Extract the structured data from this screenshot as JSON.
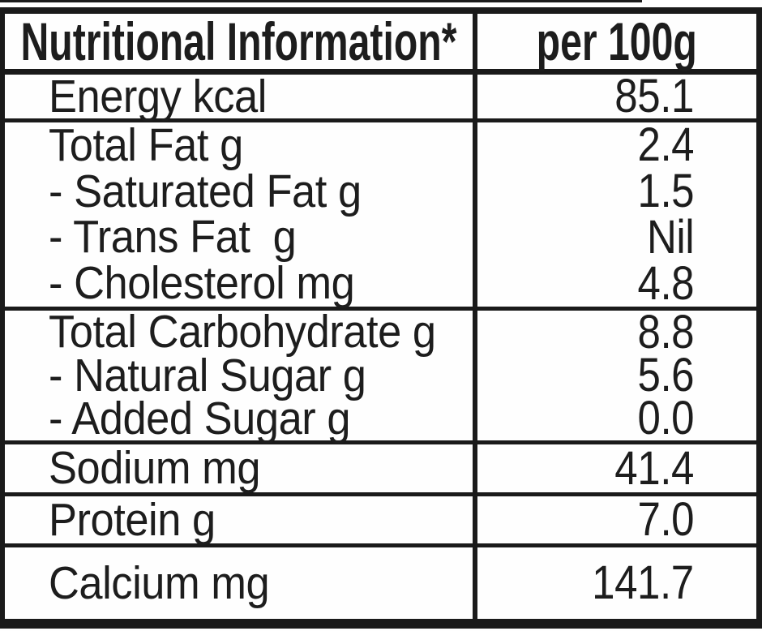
{
  "table": {
    "title": "Nutritional Information*",
    "column_header": "per 100g",
    "colors": {
      "text": "#1d1d1d",
      "border": "#1a1a1a",
      "background": "#fefefe"
    },
    "sections": [
      {
        "name": "energy",
        "rows": [
          {
            "label": "Energy kcal",
            "value": "85.1"
          }
        ]
      },
      {
        "name": "fat",
        "rows": [
          {
            "label": "Total Fat g",
            "value": "2.4"
          },
          {
            "label": "- Saturated Fat g",
            "value": "1.5"
          },
          {
            "label": "- Trans Fat  g",
            "value": "Nil"
          },
          {
            "label": "- Cholesterol mg",
            "value": "4.8"
          }
        ]
      },
      {
        "name": "carbohydrate",
        "rows": [
          {
            "label": "Total Carbohydrate g",
            "value": "8.8"
          },
          {
            "label": "- Natural Sugar g",
            "value": "5.6"
          },
          {
            "label": "- Added Sugar g",
            "value": "0.0"
          }
        ]
      },
      {
        "name": "sodium",
        "rows": [
          {
            "label": "Sodium mg",
            "value": "41.4"
          }
        ]
      },
      {
        "name": "protein",
        "rows": [
          {
            "label": "Protein g",
            "value": "7.0"
          }
        ]
      },
      {
        "name": "calcium",
        "rows": [
          {
            "label": "Calcium mg",
            "value": "141.7"
          }
        ]
      }
    ]
  }
}
